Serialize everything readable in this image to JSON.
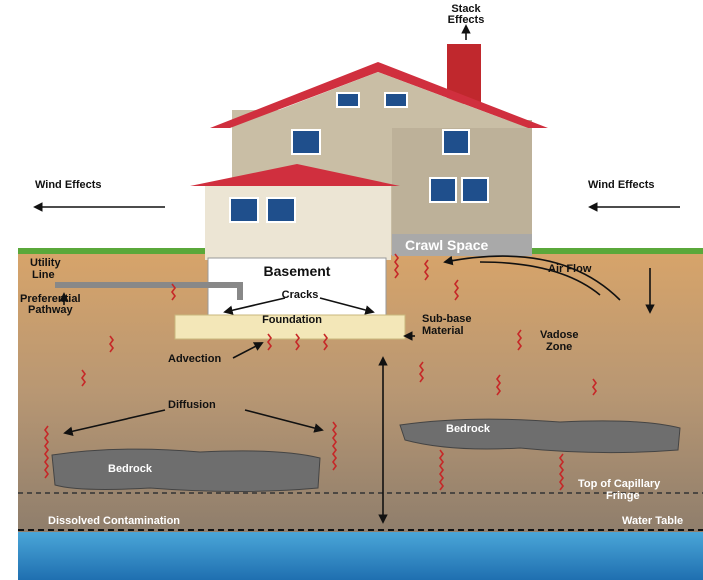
{
  "labels": {
    "stack_effects": [
      "Stack",
      "Effects"
    ],
    "wind_effects_left": "Wind Effects",
    "wind_effects_right": "Wind Effects",
    "crawl_space": "Crawl Space",
    "basement": "Basement",
    "utility_line": [
      "Utility",
      "Line"
    ],
    "preferential_pathway": [
      "Preferential",
      "Pathway"
    ],
    "cracks": "Cracks",
    "foundation": "Foundation",
    "air_flow": "Air Flow",
    "sub_base_material": [
      "Sub-base",
      "Material"
    ],
    "vadose_zone": [
      "Vadose",
      "Zone"
    ],
    "advection": "Advection",
    "diffusion": "Diffusion",
    "bedrock_right": "Bedrock",
    "bedrock_left": "Bedrock",
    "top_of_capillary_fringe": [
      "Top of Capillary",
      "Fringe"
    ],
    "dissolved_contamination": "Dissolved Contamination",
    "water_table": "Water Table"
  }
}
